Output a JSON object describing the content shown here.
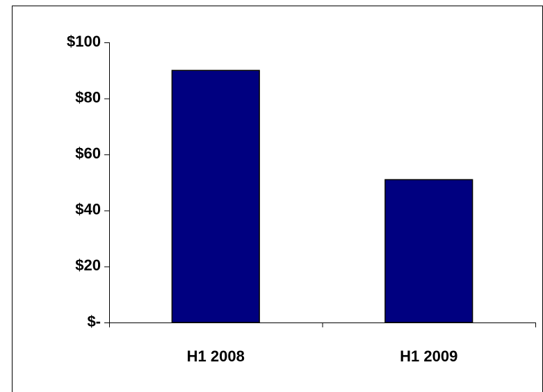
{
  "chart_data": {
    "type": "bar",
    "categories": [
      "H1 2008",
      "H1 2009"
    ],
    "values": [
      90,
      51
    ],
    "color": "#000080",
    "ylim": [
      0,
      100
    ],
    "yticks": [
      {
        "value": 0,
        "label": "$-"
      },
      {
        "value": 20,
        "label": "$20"
      },
      {
        "value": 40,
        "label": "$40"
      },
      {
        "value": 60,
        "label": "$60"
      },
      {
        "value": 80,
        "label": "$80"
      },
      {
        "value": 100,
        "label": "$100"
      }
    ],
    "grid": false
  }
}
